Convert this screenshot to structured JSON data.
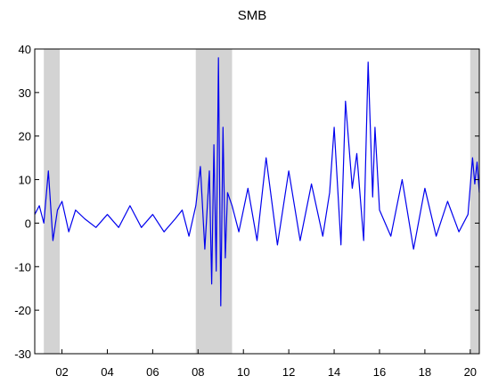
{
  "chart_data": {
    "type": "line",
    "title": "SMB",
    "xlabel": "",
    "ylabel": "",
    "xlim": [
      2000.8,
      2020.4
    ],
    "ylim": [
      -30,
      40
    ],
    "x_ticks": [
      2002,
      2004,
      2006,
      2008,
      2010,
      2012,
      2014,
      2016,
      2018,
      2020
    ],
    "x_tick_labels": [
      "02",
      "04",
      "06",
      "08",
      "10",
      "12",
      "14",
      "16",
      "18",
      "20"
    ],
    "y_ticks": [
      -30,
      -20,
      -10,
      0,
      10,
      20,
      30,
      40
    ],
    "y_tick_labels": [
      "-30",
      "-20",
      "-10",
      "0",
      "10",
      "20",
      "30",
      "40"
    ],
    "grid": false,
    "legend": "none",
    "recession_shading": [
      {
        "start": 2001.2,
        "end": 2001.9
      },
      {
        "start": 2007.9,
        "end": 2009.5
      },
      {
        "start": 2020.0,
        "end": 2020.4
      }
    ],
    "colors": {
      "series": "#0000ee",
      "shading": "#d3d3d3",
      "axis": "#000000"
    },
    "series": [
      {
        "x": [
          2000.8,
          2001.0,
          2001.2,
          2001.4,
          2001.6,
          2001.8,
          2002.0,
          2002.3,
          2002.6,
          2003.0,
          2003.5,
          2004.0,
          2004.5,
          2005.0,
          2005.5,
          2006.0,
          2006.5,
          2007.0,
          2007.3,
          2007.6,
          2007.9,
          2008.1,
          2008.3,
          2008.5,
          2008.6,
          2008.7,
          2008.8,
          2008.9,
          2009.0,
          2009.1,
          2009.2,
          2009.3,
          2009.5,
          2009.8,
          2010.2,
          2010.6,
          2011.0,
          2011.5,
          2012.0,
          2012.5,
          2013.0,
          2013.5,
          2013.8,
          2014.0,
          2014.3,
          2014.5,
          2014.8,
          2015.0,
          2015.3,
          2015.5,
          2015.7,
          2015.8,
          2016.0,
          2016.5,
          2017.0,
          2017.5,
          2018.0,
          2018.5,
          2019.0,
          2019.5,
          2019.9,
          2020.1,
          2020.2,
          2020.3,
          2020.4
        ],
        "values": [
          2,
          4,
          0,
          12,
          -4,
          3,
          5,
          -2,
          3,
          1,
          -1,
          2,
          -1,
          4,
          -1,
          2,
          -2,
          1,
          3,
          -3,
          4,
          13,
          -6,
          12,
          -14,
          18,
          -11,
          38,
          -19,
          22,
          -8,
          7,
          4,
          -2,
          8,
          -4,
          15,
          -5,
          12,
          -4,
          9,
          -3,
          7,
          22,
          -5,
          28,
          8,
          16,
          -4,
          37,
          6,
          22,
          3,
          -3,
          10,
          -6,
          8,
          -3,
          5,
          -2,
          2,
          15,
          9,
          14,
          7
        ]
      }
    ]
  }
}
